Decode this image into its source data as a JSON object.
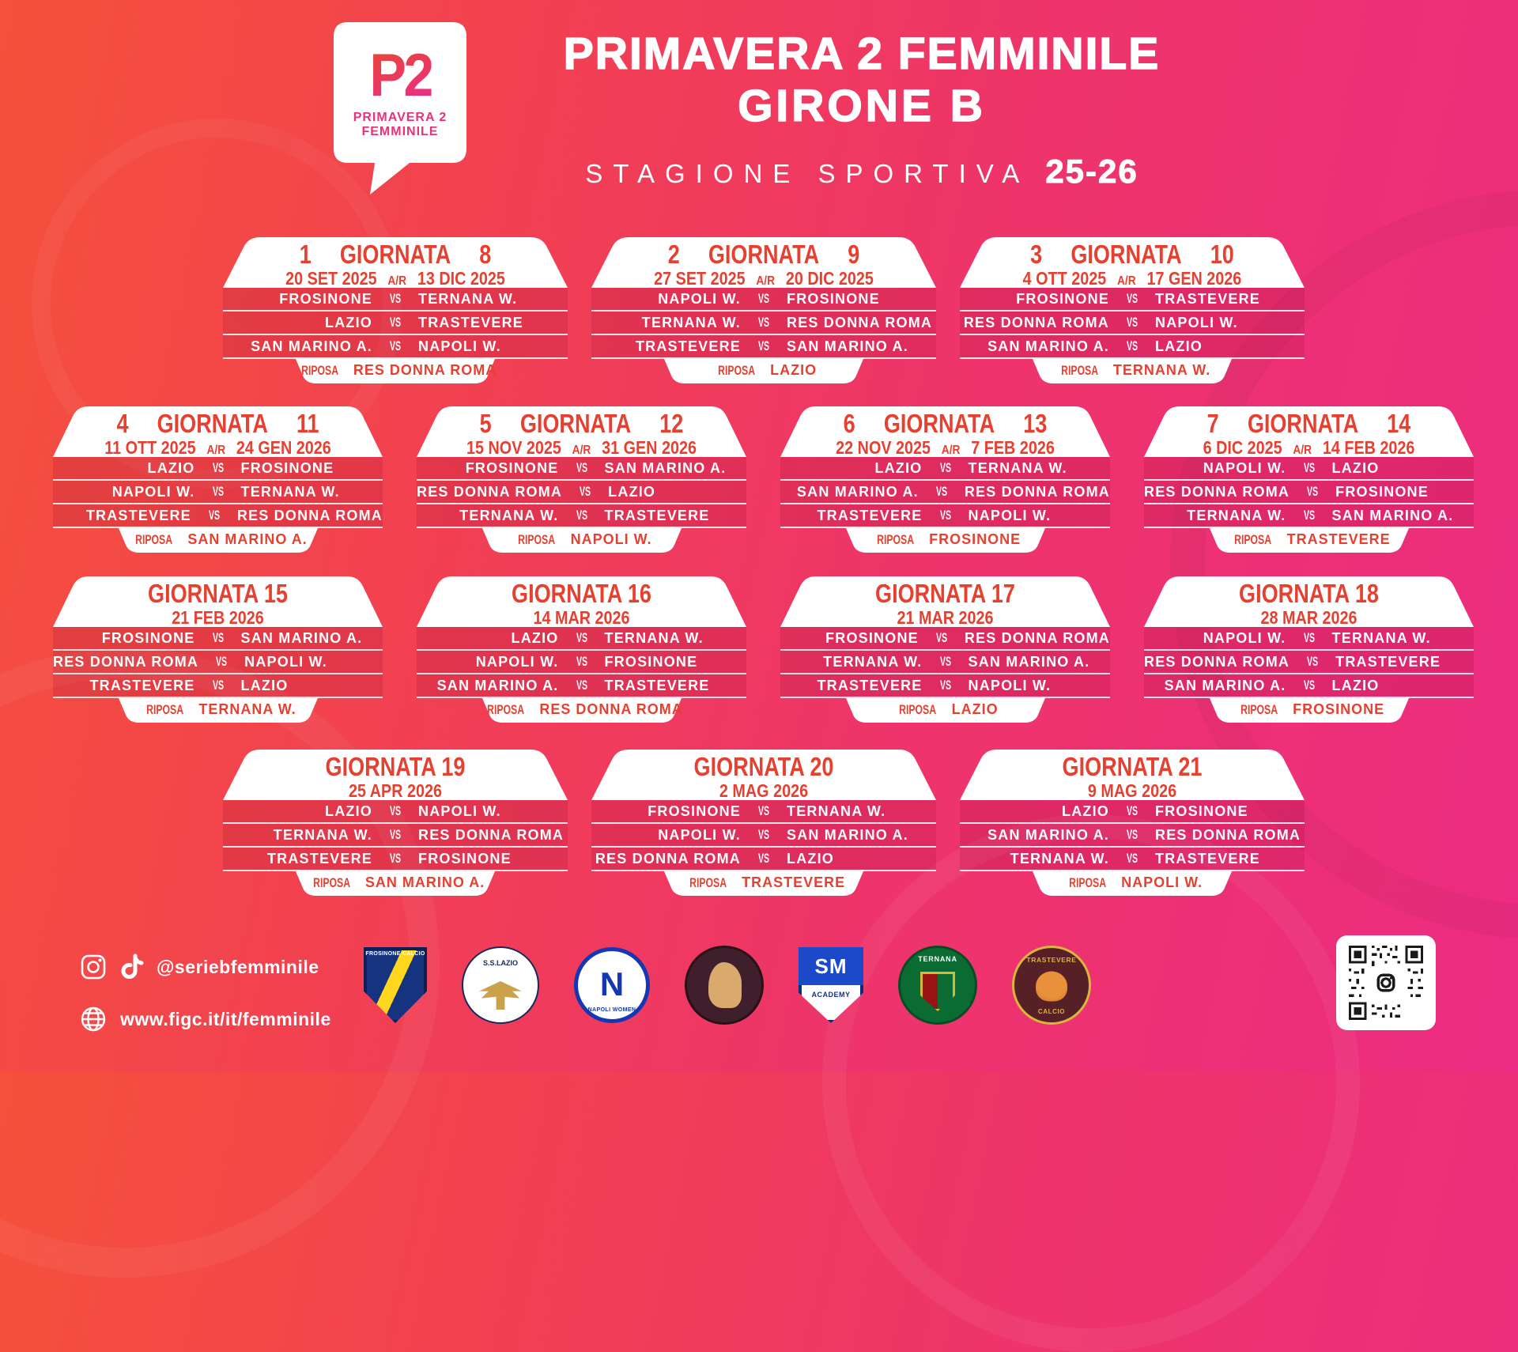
{
  "page": {
    "bg_gradient_start": "#f5513b",
    "bg_gradient_end": "#ec2c82",
    "accent_red": "#e64031",
    "card_white": "#ffffff"
  },
  "header": {
    "badge": {
      "monogram": "P2",
      "brand_line1": "PRIMAVERA 2",
      "brand_line2": "FEMMINILE"
    },
    "title_line1": "PRIMAVERA 2 FEMMINILE",
    "title_line2": "GIRONE B",
    "season_label": "STAGIONE SPORTIVA",
    "season_value": "25-26"
  },
  "labels": {
    "vs": "VS",
    "riposa": "RIPOSA",
    "ar": "A/R"
  },
  "rounds": [
    {
      "row": 1,
      "num_left": "1",
      "name": "GIORNATA",
      "num_right": "8",
      "date_left": "20 SET 2025",
      "date_right": "13 DIC 2025",
      "matches": [
        {
          "home": "FROSINONE",
          "away": "TERNANA W."
        },
        {
          "home": "LAZIO",
          "away": "TRASTEVERE"
        },
        {
          "home": "SAN MARINO A.",
          "away": "NAPOLI W."
        }
      ],
      "riposa": "RES DONNA ROMA"
    },
    {
      "row": 1,
      "num_left": "2",
      "name": "GIORNATA",
      "num_right": "9",
      "date_left": "27 SET 2025",
      "date_right": "20 DIC 2025",
      "matches": [
        {
          "home": "NAPOLI W.",
          "away": "FROSINONE"
        },
        {
          "home": "TERNANA W.",
          "away": "RES DONNA ROMA"
        },
        {
          "home": "TRASTEVERE",
          "away": "SAN MARINO A."
        }
      ],
      "riposa": "LAZIO"
    },
    {
      "row": 1,
      "num_left": "3",
      "name": "GIORNATA",
      "num_right": "10",
      "date_left": "4 OTT 2025",
      "date_right": "17 GEN 2026",
      "matches": [
        {
          "home": "FROSINONE",
          "away": "TRASTEVERE"
        },
        {
          "home": "RES DONNA ROMA",
          "away": "NAPOLI W."
        },
        {
          "home": "SAN MARINO A.",
          "away": "LAZIO"
        }
      ],
      "riposa": "TERNANA W."
    },
    {
      "row": 2,
      "num_left": "4",
      "name": "GIORNATA",
      "num_right": "11",
      "date_left": "11 OTT 2025",
      "date_right": "24 GEN 2026",
      "matches": [
        {
          "home": "LAZIO",
          "away": "FROSINONE"
        },
        {
          "home": "NAPOLI W.",
          "away": "TERNANA W."
        },
        {
          "home": "TRASTEVERE",
          "away": "RES DONNA ROMA"
        }
      ],
      "riposa": "SAN MARINO A."
    },
    {
      "row": 2,
      "num_left": "5",
      "name": "GIORNATA",
      "num_right": "12",
      "date_left": "15 NOV 2025",
      "date_right": "31 GEN 2026",
      "matches": [
        {
          "home": "FROSINONE",
          "away": "SAN MARINO A."
        },
        {
          "home": "RES DONNA ROMA",
          "away": "LAZIO"
        },
        {
          "home": "TERNANA W.",
          "away": "TRASTEVERE"
        }
      ],
      "riposa": "NAPOLI W."
    },
    {
      "row": 2,
      "num_left": "6",
      "name": "GIORNATA",
      "num_right": "13",
      "date_left": "22 NOV 2025",
      "date_right": "7 FEB 2026",
      "matches": [
        {
          "home": "LAZIO",
          "away": "TERNANA W."
        },
        {
          "home": "SAN MARINO A.",
          "away": "RES DONNA ROMA"
        },
        {
          "home": "TRASTEVERE",
          "away": "NAPOLI W."
        }
      ],
      "riposa": "FROSINONE"
    },
    {
      "row": 2,
      "num_left": "7",
      "name": "GIORNATA",
      "num_right": "14",
      "date_left": "6 DIC 2025",
      "date_right": "14 FEB 2026",
      "matches": [
        {
          "home": "NAPOLI W.",
          "away": "LAZIO"
        },
        {
          "home": "RES DONNA ROMA",
          "away": "FROSINONE"
        },
        {
          "home": "TERNANA W.",
          "away": "SAN MARINO A."
        }
      ],
      "riposa": "TRASTEVERE"
    },
    {
      "row": 3,
      "name": "GIORNATA 15",
      "date_left": "21 FEB 2026",
      "matches": [
        {
          "home": "FROSINONE",
          "away": "SAN MARINO A."
        },
        {
          "home": "RES DONNA ROMA",
          "away": "NAPOLI W."
        },
        {
          "home": "TRASTEVERE",
          "away": "LAZIO"
        }
      ],
      "riposa": "TERNANA W."
    },
    {
      "row": 3,
      "name": "GIORNATA 16",
      "date_left": "14 MAR 2026",
      "matches": [
        {
          "home": "LAZIO",
          "away": "TERNANA W."
        },
        {
          "home": "NAPOLI W.",
          "away": "FROSINONE"
        },
        {
          "home": "SAN MARINO A.",
          "away": "TRASTEVERE"
        }
      ],
      "riposa": "RES DONNA ROMA"
    },
    {
      "row": 3,
      "name": "GIORNATA 17",
      "date_left": "21 MAR 2026",
      "matches": [
        {
          "home": "FROSINONE",
          "away": "RES DONNA ROMA"
        },
        {
          "home": "TERNANA W.",
          "away": "SAN MARINO A."
        },
        {
          "home": "TRASTEVERE",
          "away": "NAPOLI W."
        }
      ],
      "riposa": "LAZIO"
    },
    {
      "row": 3,
      "name": "GIORNATA 18",
      "date_left": "28 MAR 2026",
      "matches": [
        {
          "home": "NAPOLI W.",
          "away": "TERNANA W."
        },
        {
          "home": "RES DONNA ROMA",
          "away": "TRASTEVERE"
        },
        {
          "home": "SAN MARINO A.",
          "away": "LAZIO"
        }
      ],
      "riposa": "FROSINONE"
    },
    {
      "row": 4,
      "name": "GIORNATA 19",
      "date_left": "25 APR 2026",
      "matches": [
        {
          "home": "LAZIO",
          "away": "NAPOLI W."
        },
        {
          "home": "TERNANA W.",
          "away": "RES DONNA ROMA"
        },
        {
          "home": "TRASTEVERE",
          "away": "FROSINONE"
        }
      ],
      "riposa": "SAN MARINO A."
    },
    {
      "row": 4,
      "name": "GIORNATA 20",
      "date_left": "2 MAG 2026",
      "matches": [
        {
          "home": "FROSINONE",
          "away": "TERNANA W."
        },
        {
          "home": "NAPOLI W.",
          "away": "SAN MARINO A."
        },
        {
          "home": "RES DONNA ROMA",
          "away": "LAZIO"
        }
      ],
      "riposa": "TRASTEVERE"
    },
    {
      "row": 4,
      "name": "GIORNATA 21",
      "date_left": "9 MAG 2026",
      "matches": [
        {
          "home": "LAZIO",
          "away": "FROSINONE"
        },
        {
          "home": "SAN MARINO A.",
          "away": "RES DONNA ROMA"
        },
        {
          "home": "TERNANA W.",
          "away": "TRASTEVERE"
        }
      ],
      "riposa": "NAPOLI W."
    }
  ],
  "footer": {
    "social_handle": "@seriebfemminile",
    "website": "www.figc.it/it/femminile",
    "logos": [
      {
        "id": "frosinone",
        "label": "FROSINONE CALCIO"
      },
      {
        "id": "lazio",
        "label": "S.S.LAZIO"
      },
      {
        "id": "napoli",
        "big": "N",
        "label": "NAPOLI WOMEN"
      },
      {
        "id": "resroma",
        "label": ""
      },
      {
        "id": "smacademy",
        "big": "SM",
        "label": "ACADEMY"
      },
      {
        "id": "ternana",
        "label": "TERNANA"
      },
      {
        "id": "trastevere",
        "label": "TRASTEVERE",
        "sub": "CALCIO"
      }
    ]
  }
}
